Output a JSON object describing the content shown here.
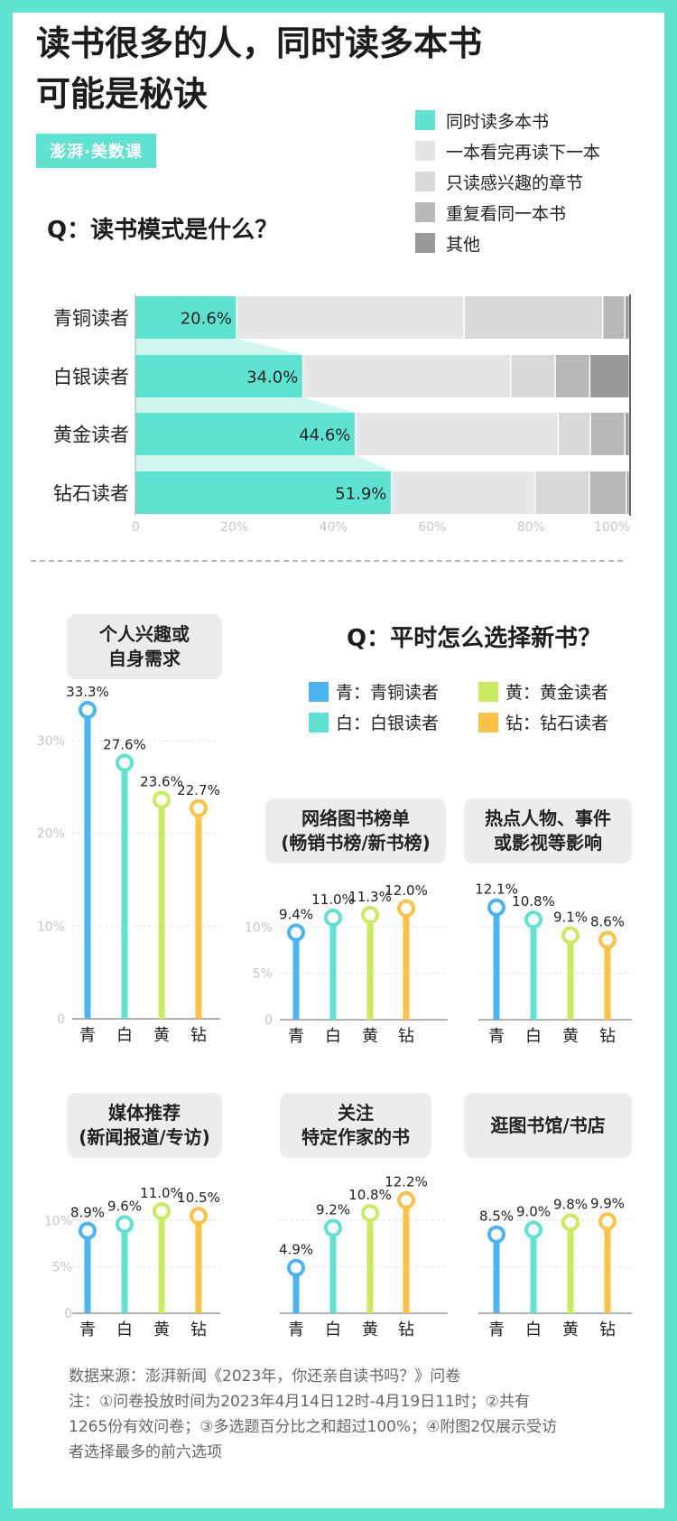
{
  "title_lines": [
    "读书很多的人，同时读多本书",
    "可能是秘诀"
  ],
  "logo_text": "澎湃·美数课",
  "section1": {
    "question": "Q：读书模式是什么？",
    "legend": [
      {
        "label": "同时读多本书",
        "color": "#5ee3d0"
      },
      {
        "label": "一本看完再读下一本",
        "color": "#e6e6e6"
      },
      {
        "label": "只读感兴趣的章节",
        "color": "#d9d9d9"
      },
      {
        "label": "重复看同一本书",
        "color": "#b8b8b8"
      },
      {
        "label": "其他",
        "color": "#999999"
      }
    ]
  },
  "section2": {
    "question": "Q：平时怎么选择新书？",
    "legend": [
      {
        "label": "青：青铜读者",
        "color": "#4ab4f5"
      },
      {
        "label": "黄：黄金读者",
        "color": "#c8ec5e"
      },
      {
        "label": "白：白银读者",
        "color": "#5ee3d0"
      },
      {
        "label": "钻：钻石读者",
        "color": "#fdc144"
      }
    ]
  },
  "chart_data": [
    {
      "type": "bar",
      "orientation": "horizontal",
      "stacked": true,
      "categories": [
        "青铜读者",
        "白银读者",
        "黄金读者",
        "钻石读者"
      ],
      "series": [
        {
          "name": "同时读多本书",
          "values": [
            20.6,
            34.0,
            44.6,
            51.9
          ]
        },
        {
          "name": "一本看完再读下一本",
          "values": [
            46.0,
            42.0,
            41.0,
            29.0
          ]
        },
        {
          "name": "只读感兴趣的章节",
          "values": [
            28.0,
            9.0,
            6.5,
            11.0
          ]
        },
        {
          "name": "重复看同一本书",
          "values": [
            4.5,
            7.0,
            7.0,
            7.5
          ]
        },
        {
          "name": "其他",
          "values": [
            0.9,
            8.0,
            0.9,
            0.6
          ]
        }
      ],
      "value_labels": [
        "20.6%",
        "34.0%",
        "44.6%",
        "51.9%"
      ],
      "xticks": [
        "0",
        "20%",
        "40%",
        "60%",
        "80%",
        "100%"
      ],
      "xlim": [
        0,
        100
      ]
    },
    {
      "type": "lollipop",
      "title_lines": [
        "个人兴趣或",
        "自身需求"
      ],
      "categories": [
        "青",
        "白",
        "黄",
        "钻"
      ],
      "values": [
        33.3,
        27.6,
        23.6,
        22.7
      ],
      "labels": [
        "33.3%",
        "27.6%",
        "23.6%",
        "22.7%"
      ],
      "yticks": [
        "0",
        "10%",
        "20%",
        "30%"
      ],
      "ylim": [
        0,
        35
      ]
    },
    {
      "type": "lollipop",
      "title_lines": [
        "网络图书榜单",
        "(畅销书榜/新书榜)"
      ],
      "categories": [
        "青",
        "白",
        "黄",
        "钻"
      ],
      "values": [
        9.4,
        11.0,
        11.3,
        12.0
      ],
      "labels": [
        "9.4%",
        "11.0%",
        "11.3%",
        "12.0%"
      ],
      "yticks": [
        "0",
        "5%",
        "10%"
      ],
      "ylim": [
        0,
        12
      ]
    },
    {
      "type": "lollipop",
      "title_lines": [
        "热点人物、事件",
        "或影视等影响"
      ],
      "categories": [
        "青",
        "白",
        "黄",
        "钻"
      ],
      "values": [
        12.1,
        10.8,
        9.1,
        8.6
      ],
      "labels": [
        "12.1%",
        "10.8%",
        "9.1%",
        "8.6%"
      ],
      "yticks": [],
      "ylim": [
        0,
        12
      ]
    },
    {
      "type": "lollipop",
      "title_lines": [
        "媒体推荐",
        "(新闻报道/专访)"
      ],
      "categories": [
        "青",
        "白",
        "黄",
        "钻"
      ],
      "values": [
        8.9,
        9.6,
        11.0,
        10.5
      ],
      "labels": [
        "8.9%",
        "9.6%",
        "11.0%",
        "10.5%"
      ],
      "yticks": [
        "0",
        "5%",
        "10%"
      ],
      "ylim": [
        0,
        12
      ]
    },
    {
      "type": "lollipop",
      "title_lines": [
        "关注",
        "特定作家的书"
      ],
      "categories": [
        "青",
        "白",
        "黄",
        "钻"
      ],
      "values": [
        4.9,
        9.2,
        10.8,
        12.2
      ],
      "labels": [
        "4.9%",
        "9.2%",
        "10.8%",
        "12.2%"
      ],
      "yticks": [],
      "ylim": [
        0,
        12
      ]
    },
    {
      "type": "lollipop",
      "title_lines": [
        "逛图书馆/书店"
      ],
      "categories": [
        "青",
        "白",
        "黄",
        "钻"
      ],
      "values": [
        8.5,
        9.0,
        9.8,
        9.9
      ],
      "labels": [
        "8.5%",
        "9.0%",
        "9.8%",
        "9.9%"
      ],
      "yticks": [],
      "ylim": [
        0,
        12
      ]
    }
  ],
  "series_colors": [
    "#4ab4f5",
    "#5ee3d0",
    "#c8ec5e",
    "#fdc144"
  ],
  "note_lines": [
    "数据来源：澎湃新闻《2023年，你还亲自读书吗？》问卷",
    "注：①问卷投放时间为2023年4月14日12时-4月19日11时；②共有",
    "1265份有效问卷；③多选题百分比之和超过100%；④附图2仅展示受访",
    "者选择最多的前六选项"
  ]
}
